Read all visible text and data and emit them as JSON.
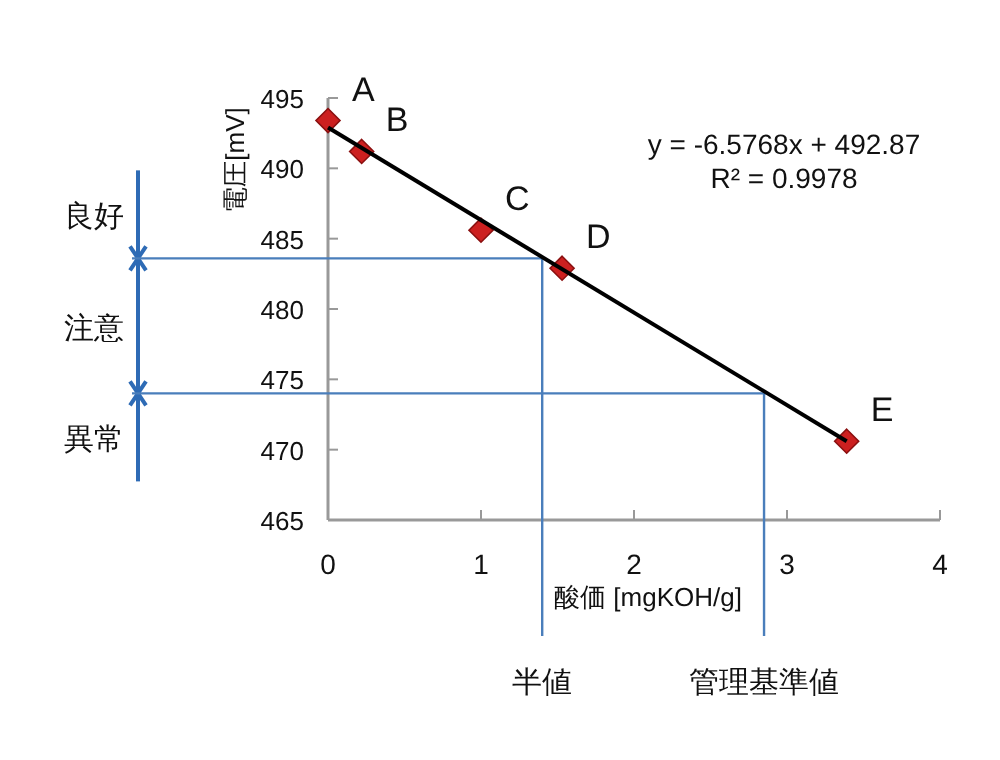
{
  "chart_data": {
    "type": "scatter",
    "xlabel": "酸価 [mgKOH/g]",
    "ylabel": "電圧[mV]",
    "xlim": [
      0,
      4
    ],
    "ylim": [
      465,
      495
    ],
    "xticks": [
      0,
      1,
      2,
      3,
      4
    ],
    "yticks": [
      465,
      470,
      475,
      480,
      485,
      490,
      495
    ],
    "grid": false,
    "marker": "diamond",
    "series": [
      {
        "type": "scatter",
        "color": "#cc2020",
        "x": [
          0,
          0.22,
          1.0,
          1.53,
          3.39
        ],
        "values": [
          493.4,
          491.2,
          485.6,
          482.9,
          470.6
        ]
      },
      {
        "type": "line",
        "color": "#000000",
        "line_style": "solid",
        "marker": "none",
        "x": [
          0,
          3.39
        ],
        "values": [
          492.9,
          470.6
        ]
      }
    ],
    "ref_lines": [
      {
        "axis": "y",
        "value": 483.6,
        "color": "#4a7ebb"
      },
      {
        "axis": "y",
        "value": 474.0,
        "color": "#4a7ebb"
      },
      {
        "axis": "x",
        "value": 1.4,
        "label": "半値",
        "color": "#4a7ebb"
      },
      {
        "axis": "x",
        "value": 2.85,
        "label": "管理基準値",
        "color": "#4a7ebb"
      }
    ],
    "annotations": [
      {
        "text": "A",
        "x": 0,
        "y": 493.4
      },
      {
        "text": "B",
        "x": 0.22,
        "y": 491.2
      },
      {
        "text": "C",
        "x": 1.0,
        "y": 485.6
      },
      {
        "text": "D",
        "x": 1.53,
        "y": 482.9
      },
      {
        "text": "E",
        "x": 3.39,
        "y": 470.6
      },
      "y = -6.5768x + 492.87",
      "R² = 0.9978",
      "良好",
      "注意",
      "異常"
    ]
  }
}
